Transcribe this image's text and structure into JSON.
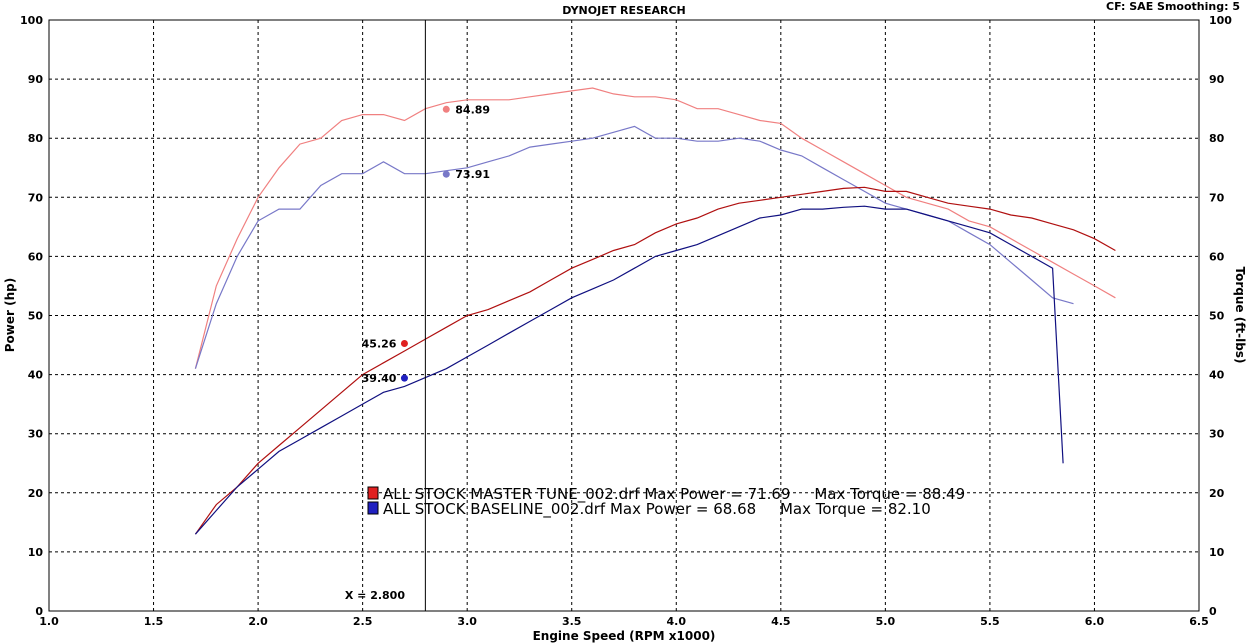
{
  "chart_data": {
    "type": "line",
    "title": "DYNOJET RESEARCH",
    "corner_info": "CF: SAE  Smoothing: 5",
    "xlabel": "Engine Speed (RPM x1000)",
    "ylabel_left": "Power (hp)",
    "ylabel_right": "Torque (ft-lbs)",
    "xlim": [
      1.0,
      6.5
    ],
    "ylim": [
      0,
      100
    ],
    "x_ticks": [
      "1.0",
      "1.5",
      "2.0",
      "2.5",
      "3.0",
      "3.5",
      "4.0",
      "4.5",
      "5.0",
      "5.5",
      "6.0",
      "6.5"
    ],
    "y_ticks": [
      "0",
      "10",
      "20",
      "30",
      "40",
      "50",
      "60",
      "70",
      "80",
      "90",
      "100"
    ],
    "grid": true,
    "cursor": {
      "x": 2.8,
      "label": "X = 2.800"
    },
    "series": [
      {
        "name": "ALL STOCK MASTER TUNE_002.drf",
        "kind": "torque",
        "color": "#f08080",
        "x": [
          1.7,
          1.8,
          1.9,
          2.0,
          2.1,
          2.2,
          2.3,
          2.4,
          2.5,
          2.6,
          2.7,
          2.8,
          2.9,
          3.0,
          3.1,
          3.2,
          3.3,
          3.4,
          3.5,
          3.6,
          3.7,
          3.8,
          3.9,
          4.0,
          4.1,
          4.2,
          4.3,
          4.4,
          4.5,
          4.6,
          4.7,
          4.8,
          4.9,
          5.0,
          5.1,
          5.2,
          5.3,
          5.4,
          5.5,
          5.6,
          5.7,
          5.8,
          5.9,
          6.0,
          6.1
        ],
        "y": [
          41,
          55,
          63,
          70,
          75,
          79,
          80,
          83,
          84,
          84,
          83,
          85,
          86,
          86.5,
          86.5,
          86.5,
          87,
          87.5,
          88,
          88.5,
          87.5,
          87,
          87,
          86.5,
          85,
          85,
          84,
          83,
          82.5,
          80,
          78,
          76,
          74,
          72,
          70,
          69,
          68,
          66,
          65,
          63,
          61,
          59,
          57,
          55,
          53
        ]
      },
      {
        "name": "ALL STOCK BASELINE_002.drf",
        "kind": "torque",
        "color": "#7878c8",
        "x": [
          1.7,
          1.8,
          1.9,
          2.0,
          2.1,
          2.2,
          2.3,
          2.4,
          2.5,
          2.6,
          2.7,
          2.8,
          2.9,
          3.0,
          3.1,
          3.2,
          3.3,
          3.4,
          3.5,
          3.6,
          3.7,
          3.8,
          3.9,
          4.0,
          4.1,
          4.2,
          4.3,
          4.4,
          4.5,
          4.6,
          4.7,
          4.8,
          4.9,
          5.0,
          5.1,
          5.2,
          5.3,
          5.4,
          5.5,
          5.6,
          5.7,
          5.8,
          5.9
        ],
        "y": [
          41,
          52,
          60,
          66,
          68,
          68,
          72,
          74,
          74,
          76,
          74,
          74,
          74.5,
          75,
          76,
          77,
          78.5,
          79,
          79.5,
          80,
          81,
          82,
          80,
          80,
          79.5,
          79.5,
          80,
          79.5,
          78,
          77,
          75,
          73,
          71,
          69,
          68,
          67,
          66,
          64,
          62,
          59,
          56,
          53,
          52
        ]
      },
      {
        "name": "ALL STOCK MASTER TUNE_002.drf",
        "kind": "power",
        "color": "#b01010",
        "x": [
          1.7,
          1.8,
          1.9,
          2.0,
          2.1,
          2.2,
          2.3,
          2.4,
          2.5,
          2.6,
          2.7,
          2.8,
          2.9,
          3.0,
          3.1,
          3.2,
          3.3,
          3.4,
          3.5,
          3.6,
          3.7,
          3.8,
          3.9,
          4.0,
          4.1,
          4.2,
          4.3,
          4.4,
          4.5,
          4.6,
          4.7,
          4.8,
          4.9,
          5.0,
          5.1,
          5.2,
          5.3,
          5.4,
          5.5,
          5.6,
          5.7,
          5.8,
          5.9,
          6.0,
          6.1
        ],
        "y": [
          13,
          18,
          21,
          25,
          28,
          31,
          34,
          37,
          40,
          42,
          44,
          46,
          48,
          50,
          51,
          52.5,
          54,
          56,
          58,
          59.5,
          61,
          62,
          64,
          65.5,
          66.5,
          68,
          69,
          69.5,
          70,
          70.5,
          71,
          71.5,
          71.7,
          71,
          71,
          70,
          69,
          68.5,
          68,
          67,
          66.5,
          65.5,
          64.5,
          63,
          61
        ]
      },
      {
        "name": "ALL STOCK BASELINE_002.drf",
        "kind": "power",
        "color": "#101080",
        "x": [
          1.7,
          1.8,
          1.9,
          2.0,
          2.1,
          2.2,
          2.3,
          2.4,
          2.5,
          2.6,
          2.7,
          2.8,
          2.9,
          3.0,
          3.1,
          3.2,
          3.3,
          3.4,
          3.5,
          3.6,
          3.7,
          3.8,
          3.9,
          4.0,
          4.1,
          4.2,
          4.3,
          4.4,
          4.5,
          4.6,
          4.7,
          4.8,
          4.9,
          5.0,
          5.1,
          5.2,
          5.3,
          5.4,
          5.5,
          5.6,
          5.7,
          5.8,
          5.85
        ],
        "y": [
          13,
          17,
          21,
          24,
          27,
          29,
          31,
          33,
          35,
          37,
          38,
          39.5,
          41,
          43,
          45,
          47,
          49,
          51,
          53,
          54.5,
          56,
          58,
          60,
          61,
          62,
          63.5,
          65,
          66.5,
          67,
          68,
          68,
          68.3,
          68.5,
          68,
          68,
          67,
          66,
          65,
          64,
          62,
          60,
          58,
          25
        ]
      }
    ],
    "markers": [
      {
        "x": 2.9,
        "y": 84.89,
        "label": "84.89",
        "color": "#f08080",
        "side": "right"
      },
      {
        "x": 2.9,
        "y": 73.91,
        "label": "73.91",
        "color": "#7878c8",
        "side": "right"
      },
      {
        "x": 2.7,
        "y": 45.26,
        "label": "45.26",
        "color": "#e02020",
        "side": "left"
      },
      {
        "x": 2.7,
        "y": 39.4,
        "label": "39.40",
        "color": "#2020c0",
        "side": "left"
      }
    ],
    "legend": [
      {
        "text": "ALL STOCK MASTER TUNE_002.drf Max Power = 71.69     Max Torque = 88.49",
        "color": "#e02020"
      },
      {
        "text": "ALL STOCK BASELINE_002.drf Max Power = 68.68     Max Torque = 82.10",
        "color": "#2020c0"
      }
    ]
  }
}
